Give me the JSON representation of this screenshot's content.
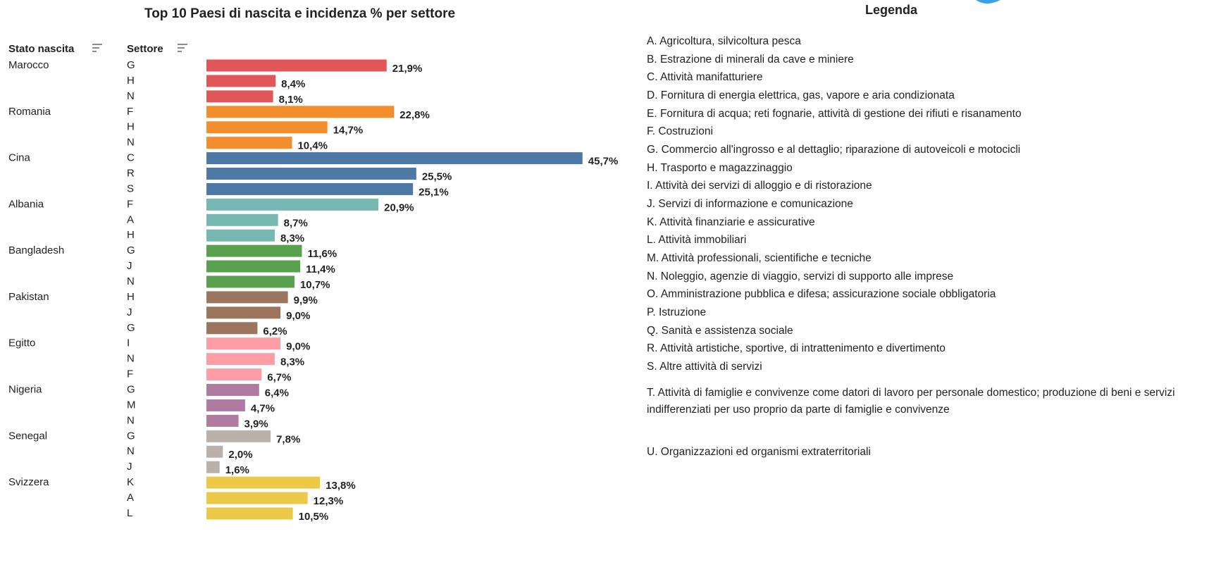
{
  "chart_data": {
    "type": "bar",
    "title": "Top 10 Paesi di nascita e incidenza % per settore",
    "column_headers": [
      "Stato nascita",
      "Settore"
    ],
    "groups": [
      {
        "name": "Marocco",
        "color": "#e15759",
        "categories": [
          "G",
          "H",
          "N"
        ],
        "values": [
          21.9,
          8.4,
          8.1
        ],
        "value_labels": [
          "21,9%",
          "8,4%",
          "8,1%"
        ]
      },
      {
        "name": "Romania",
        "color": "#f28e2b",
        "categories": [
          "F",
          "H",
          "N"
        ],
        "values": [
          22.8,
          14.7,
          10.4
        ],
        "value_labels": [
          "22,8%",
          "14,7%",
          "10,4%"
        ]
      },
      {
        "name": "Cina",
        "color": "#4e79a7",
        "categories": [
          "C",
          "R",
          "S"
        ],
        "values": [
          45.7,
          25.5,
          25.1
        ],
        "value_labels": [
          "45,7%",
          "25,5%",
          "25,1%"
        ]
      },
      {
        "name": "Albania",
        "color": "#76b7b2",
        "categories": [
          "F",
          "A",
          "H"
        ],
        "values": [
          20.9,
          8.7,
          8.3
        ],
        "value_labels": [
          "20,9%",
          "8,7%",
          "8,3%"
        ]
      },
      {
        "name": "Bangladesh",
        "color": "#59a14f",
        "categories": [
          "G",
          "J",
          "N"
        ],
        "values": [
          11.6,
          11.4,
          10.7
        ],
        "value_labels": [
          "11,6%",
          "11,4%",
          "10,7%"
        ]
      },
      {
        "name": "Pakistan",
        "color": "#9c755f",
        "categories": [
          "H",
          "J",
          "G"
        ],
        "values": [
          9.9,
          9.0,
          6.2
        ],
        "value_labels": [
          "9,9%",
          "9,0%",
          "6,2%"
        ]
      },
      {
        "name": "Egitto",
        "color": "#ff9da7",
        "categories": [
          "I",
          "N",
          "F"
        ],
        "values": [
          9.0,
          8.3,
          6.7
        ],
        "value_labels": [
          "9,0%",
          "8,3%",
          "6,7%"
        ]
      },
      {
        "name": "Nigeria",
        "color": "#b07aa1",
        "categories": [
          "G",
          "M",
          "N"
        ],
        "values": [
          6.4,
          4.7,
          3.9
        ],
        "value_labels": [
          "6,4%",
          "4,7%",
          "3,9%"
        ]
      },
      {
        "name": "Senegal",
        "color": "#bab0ac",
        "categories": [
          "G",
          "N",
          "J"
        ],
        "values": [
          7.8,
          2.0,
          1.6
        ],
        "value_labels": [
          "7,8%",
          "2,0%",
          "1,6%"
        ]
      },
      {
        "name": "Svizzera",
        "color": "#edc948",
        "categories": [
          "K",
          "A",
          "L"
        ],
        "values": [
          13.8,
          12.3,
          10.5
        ],
        "value_labels": [
          "13,8%",
          "12,3%",
          "10,5%"
        ]
      }
    ]
  },
  "legend": {
    "title": "Legenda",
    "items": [
      "A. Agricoltura, silvicoltura pesca",
      "B. Estrazione di minerali da cave e miniere",
      "C. Attività manifatturiere",
      "D. Fornitura di energia elettrica, gas, vapore e aria condizionata",
      "E. Fornitura di acqua; reti fognarie, attività di gestione dei rifiuti e risanamento",
      "F. Costruzioni",
      "G. Commercio all'ingrosso e al dettaglio; riparazione di autoveicoli e motocicli",
      "H. Trasporto e magazzinaggio",
      "I. Attività dei servizi di alloggio e di ristorazione",
      "J. Servizi di informazione e comunicazione",
      "K. Attività finanziarie e assicurative",
      "L. Attività immobiliari",
      "M. Attività professionali, scientifiche e tecniche",
      "N. Noleggio, agenzie di viaggio, servizi di supporto alle imprese",
      "O. Amministrazione pubblica e difesa; assicurazione sociale obbligatoria",
      "P. Istruzione",
      "Q. Sanità e assistenza sociale",
      "R. Attività artistiche, sportive, di intrattenimento e divertimento",
      "S. Altre attività di servizi",
      "T. Attività di famiglie e convivenze come datori di lavoro per personale domestico; produzione di beni e servizi indifferenziati per uso proprio da parte di famiglie e convivenze",
      "U. Organizzazioni ed organismi extraterritoriali"
    ]
  }
}
